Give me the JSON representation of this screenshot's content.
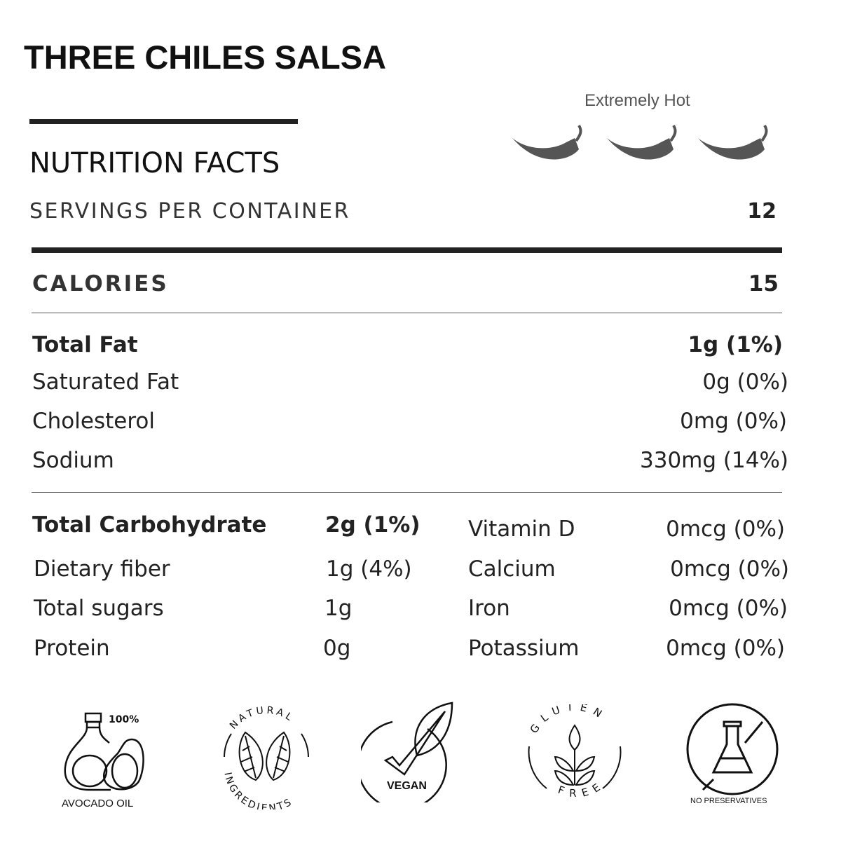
{
  "title": "THREE CHILES SALSA",
  "heat": {
    "label": "Extremely Hot",
    "peppers": 3,
    "color": "#555555"
  },
  "nutrition": {
    "heading": "NUTRITION FACTS",
    "servings_label": "SERVINGS PER CONTAINER",
    "servings_value": "12",
    "calories_label": "CALORIES",
    "calories_value": "15",
    "rows": [
      {
        "label": "Total Fat",
        "value": "1g (1%)"
      },
      {
        "label": "Saturated Fat",
        "value": "0g (0%)"
      },
      {
        "label": "Cholesterol",
        "value": "0mg (0%)"
      },
      {
        "label": "Sodium",
        "value": "330mg (14%)"
      }
    ],
    "left_rows": [
      {
        "label": "Total Carbohydrate",
        "value": "2g (1%)"
      },
      {
        "label": "Dietary fiber",
        "value": "1g (4%)"
      },
      {
        "label": "Total sugars",
        "value": "1g"
      },
      {
        "label": "Protein",
        "value": "0g"
      }
    ],
    "right_rows": [
      {
        "label": "Vitamin D",
        "value": "0mcg (0%)"
      },
      {
        "label": "Calcium",
        "value": "0mcg (0%)"
      },
      {
        "label": "Iron",
        "value": "0mcg (0%)"
      },
      {
        "label": "Potassium",
        "value": "0mcg (0%)"
      }
    ]
  },
  "badges": {
    "avocado": {
      "percent": "100%",
      "label": "AVOCADO OIL"
    },
    "natural": {
      "top": "NATURAL",
      "bottom": "INGREDIENTS"
    },
    "vegan": {
      "label": "VEGAN"
    },
    "gluten": {
      "top": "GLUTEN",
      "bottom": "FREE"
    },
    "preservatives": {
      "label": "NO PRESERVATIVES"
    }
  }
}
